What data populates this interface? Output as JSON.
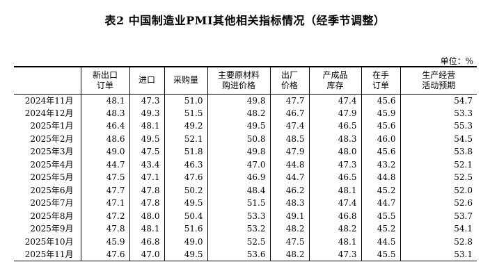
{
  "title": "表2 中国制造业PMI其他相关指标情况（经季节调整）",
  "unit": "单位：%",
  "columns": [
    {
      "line1": "新出口",
      "line2": "订单"
    },
    {
      "line1": "进口",
      "line2": ""
    },
    {
      "line1": "采购量",
      "line2": ""
    },
    {
      "line1": "主要原材料",
      "line2": "购进价格"
    },
    {
      "line1": "出厂",
      "line2": "价格"
    },
    {
      "line1": "产成品",
      "line2": "库存"
    },
    {
      "line1": "在手",
      "line2": "订单"
    },
    {
      "line1": "生产经营",
      "line2": "活动预期"
    }
  ],
  "rows": [
    {
      "month": "2024年11月",
      "values": [
        "48.1",
        "47.3",
        "51.0",
        "49.8",
        "47.7",
        "47.4",
        "45.6",
        "54.7"
      ]
    },
    {
      "month": "2024年12月",
      "values": [
        "48.3",
        "49.3",
        "51.5",
        "48.2",
        "46.7",
        "47.9",
        "45.9",
        "53.3"
      ]
    },
    {
      "month": "2025年1月",
      "values": [
        "46.4",
        "48.1",
        "49.2",
        "49.5",
        "47.4",
        "46.5",
        "45.6",
        "55.3"
      ]
    },
    {
      "month": "2025年2月",
      "values": [
        "48.6",
        "49.5",
        "52.1",
        "50.8",
        "48.5",
        "48.3",
        "46.0",
        "54.5"
      ]
    },
    {
      "month": "2025年3月",
      "values": [
        "49.0",
        "47.5",
        "51.8",
        "49.8",
        "47.9",
        "48.0",
        "45.6",
        "53.8"
      ]
    },
    {
      "month": "2025年4月",
      "values": [
        "44.7",
        "43.4",
        "46.3",
        "47.0",
        "44.8",
        "47.3",
        "43.2",
        "52.1"
      ]
    },
    {
      "month": "2025年5月",
      "values": [
        "47.5",
        "47.1",
        "47.6",
        "46.9",
        "44.7",
        "46.5",
        "44.8",
        "52.5"
      ]
    },
    {
      "month": "2025年6月",
      "values": [
        "47.7",
        "47.8",
        "50.2",
        "48.4",
        "46.2",
        "48.1",
        "45.2",
        "52.0"
      ]
    },
    {
      "month": "2025年7月",
      "values": [
        "47.1",
        "47.8",
        "49.5",
        "51.5",
        "48.3",
        "47.4",
        "44.7",
        "52.6"
      ]
    },
    {
      "month": "2025年8月",
      "values": [
        "47.2",
        "48.0",
        "50.4",
        "53.3",
        "49.1",
        "46.8",
        "45.5",
        "53.7"
      ]
    },
    {
      "month": "2025年9月",
      "values": [
        "47.8",
        "48.1",
        "51.6",
        "53.2",
        "48.2",
        "48.2",
        "45.2",
        "54.1"
      ]
    },
    {
      "month": "2025年10月",
      "values": [
        "45.9",
        "46.8",
        "49.0",
        "52.5",
        "47.5",
        "48.1",
        "44.5",
        "52.8"
      ]
    },
    {
      "month": "2025年11月",
      "values": [
        "47.6",
        "47.0",
        "49.5",
        "53.6",
        "48.2",
        "47.3",
        "45.5",
        "53.1"
      ]
    }
  ]
}
